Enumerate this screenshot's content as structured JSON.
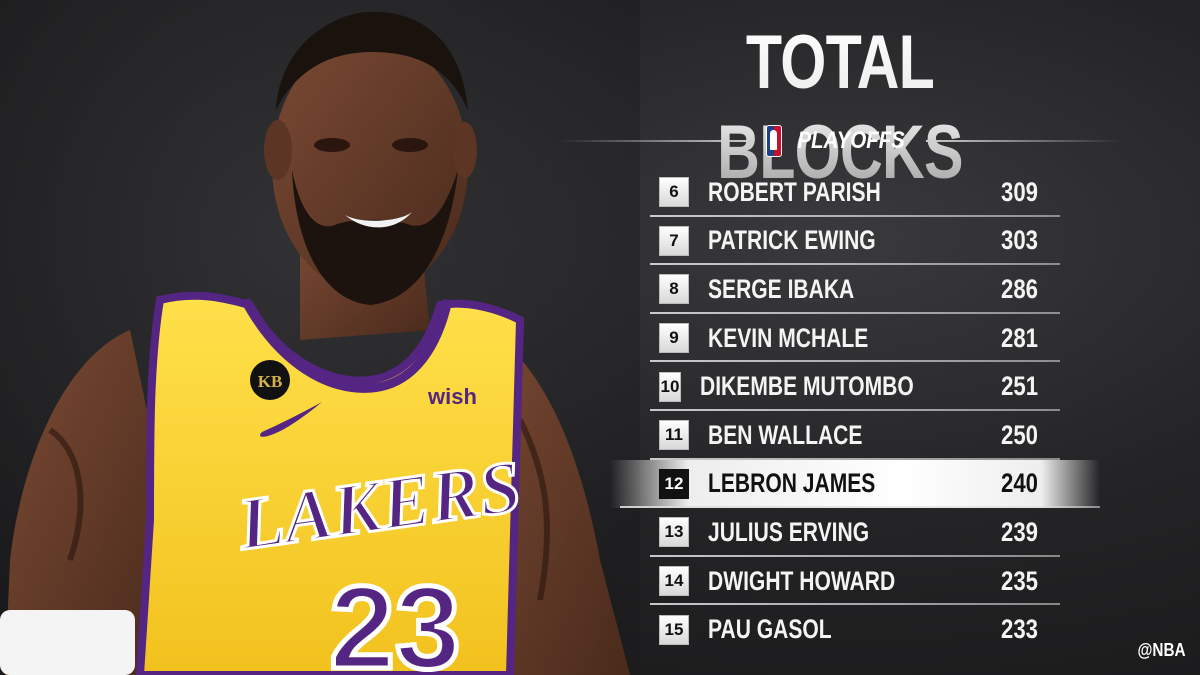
{
  "title": "TOTAL BLOCKS",
  "subtitle": "PLAYOFFS",
  "player": {
    "team_wordmark": "LAKERS",
    "jersey_number": "23",
    "sponsor": "wish",
    "patch": "KB"
  },
  "rankings": [
    {
      "rank": "6",
      "name": "ROBERT PARISH",
      "blocks": "309"
    },
    {
      "rank": "7",
      "name": "PATRICK EWING",
      "blocks": "303"
    },
    {
      "rank": "8",
      "name": "SERGE IBAKA",
      "blocks": "286"
    },
    {
      "rank": "9",
      "name": "KEVIN MCHALE",
      "blocks": "281"
    },
    {
      "rank": "10",
      "name": "DIKEMBE MUTOMBO",
      "blocks": "251"
    },
    {
      "rank": "11",
      "name": "BEN WALLACE",
      "blocks": "250"
    },
    {
      "rank": "12",
      "name": "LEBRON JAMES",
      "blocks": "240"
    },
    {
      "rank": "13",
      "name": "JULIUS ERVING",
      "blocks": "239"
    },
    {
      "rank": "14",
      "name": "DWIGHT HOWARD",
      "blocks": "235"
    },
    {
      "rank": "15",
      "name": "PAU GASOL",
      "blocks": "233"
    }
  ],
  "highlight_rank": "12",
  "handle": "@NBA",
  "colors": {
    "jersey_gold": "#fdd235",
    "jersey_purple": "#552583",
    "highlight_bg": "#ffffff"
  }
}
